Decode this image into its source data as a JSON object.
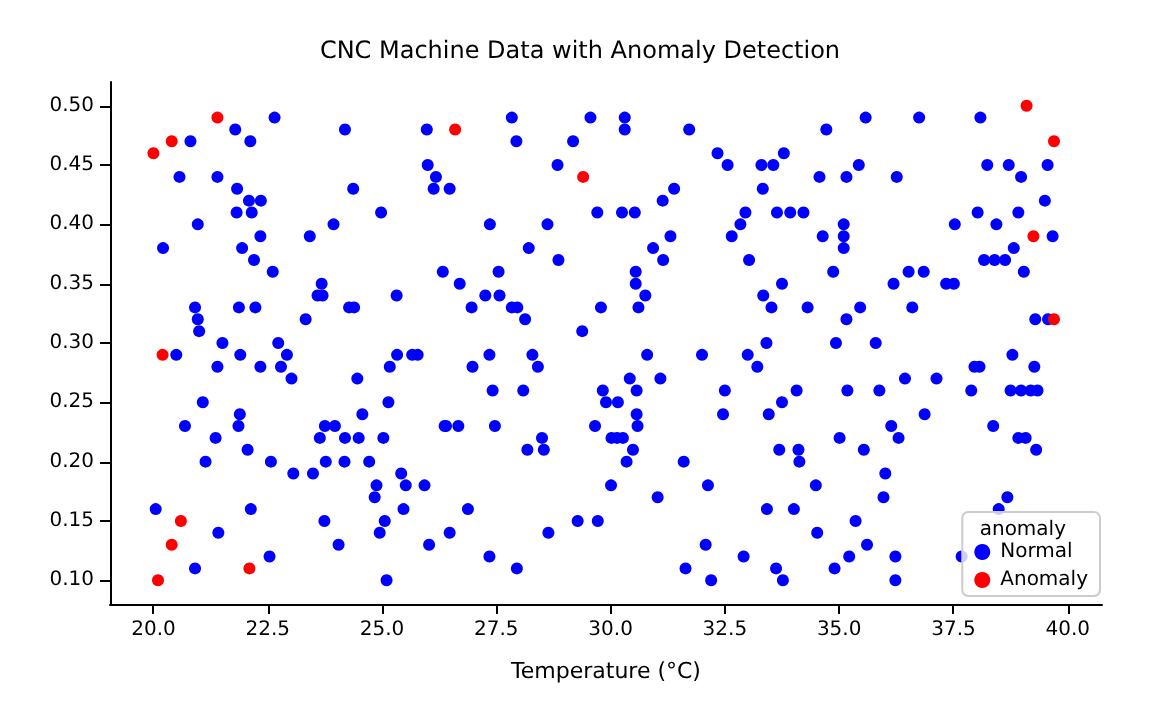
{
  "chart_data": {
    "type": "scatter",
    "title": "CNC Machine Data with Anomaly Detection",
    "xlabel": "Temperature (°C)",
    "legend_title": "anomaly",
    "legend": "bottom right",
    "grid": false,
    "marker": "circle",
    "xlim": [
      19.05,
      40.75
    ],
    "ylim": [
      0.08,
      0.52
    ],
    "xticks": [
      {
        "value": 20,
        "label": "20.0"
      },
      {
        "value": 22.5,
        "label": "22.5"
      },
      {
        "value": 25,
        "label": "25.0"
      },
      {
        "value": 27.5,
        "label": "27.5"
      },
      {
        "value": 30,
        "label": "30.0"
      },
      {
        "value": 32.5,
        "label": "32.5"
      },
      {
        "value": 35,
        "label": "35.0"
      },
      {
        "value": 37.5,
        "label": "37.5"
      },
      {
        "value": 40,
        "label": "40.0"
      }
    ],
    "yticks": [
      {
        "value": 0.1,
        "label": "0.10"
      },
      {
        "value": 0.15,
        "label": "0.15"
      },
      {
        "value": 0.2,
        "label": "0.20"
      },
      {
        "value": 0.25,
        "label": "0.25"
      },
      {
        "value": 0.3,
        "label": "0.30"
      },
      {
        "value": 0.35,
        "label": "0.35"
      },
      {
        "value": 0.4,
        "label": "0.40"
      },
      {
        "value": 0.45,
        "label": "0.45"
      },
      {
        "value": 0.5,
        "label": "0.50"
      }
    ],
    "series": [
      {
        "name": "Normal",
        "color": "#0000ff",
        "x": [
          20.81,
          21.79,
          22.12,
          22.65,
          24.19,
          20.57,
          21.4,
          21.83,
          24.37,
          22.09,
          22.35,
          21.82,
          22.15,
          24.98,
          20.97,
          23.94,
          22.34,
          23.42,
          20.21,
          21.94,
          22.2,
          22.61,
          23.68,
          23.59,
          23.7,
          25.32,
          20.91,
          21.87,
          22.23,
          24.28,
          24.39,
          20.97,
          23.33,
          21.0,
          21.51,
          22.73,
          20.5,
          21.9,
          22.92,
          25.33,
          25.66,
          25.78,
          21.4,
          22.34,
          22.79,
          25.17,
          23.02,
          24.46,
          25.14,
          21.08,
          24.57,
          21.89,
          20.69,
          21.86,
          23.75,
          23.97,
          21.36,
          23.64,
          24.19,
          24.49,
          25.03,
          22.06,
          21.14,
          22.57,
          23.77,
          24.18,
          24.72,
          23.06,
          23.49,
          25.42,
          24.88,
          25.52,
          25.93,
          24.84,
          20.05,
          22.13,
          25.47,
          23.74,
          25.06,
          21.42,
          24.95,
          24.05,
          26.03,
          22.54,
          20.91,
          25.1,
          25.98,
          26.0,
          26.18,
          26.13,
          26.48,
          26.33,
          26.37,
          27.84,
          29.56,
          30.31,
          30.31,
          31.72,
          27.94,
          29.18,
          32.34,
          33.79,
          28.84,
          32.56,
          33.3,
          33.56,
          31.39,
          33.33,
          31.14,
          29.71,
          30.25,
          30.53,
          32.95,
          33.64,
          33.93,
          27.36,
          28.62,
          32.84,
          31.31,
          32.65,
          28.21,
          30.93,
          28.86,
          31.15,
          33.03,
          27.55,
          30.55,
          26.7,
          30.55,
          33.75,
          27.26,
          27.57,
          30.76,
          33.34,
          26.96,
          27.84,
          27.96,
          29.79,
          30.61,
          33.52,
          28.13,
          29.38,
          33.41,
          27.35,
          28.29,
          30.8,
          32.0,
          33.0,
          26.98,
          28.41,
          33.21,
          30.42,
          31.09,
          27.42,
          28.09,
          29.83,
          30.57,
          32.5,
          34.07,
          29.9,
          30.16,
          33.75,
          30.57,
          32.46,
          33.46,
          26.4,
          26.67,
          27.47,
          29.66,
          30.59,
          28.5,
          30.02,
          30.14,
          30.27,
          28.18,
          28.54,
          30.49,
          33.69,
          34.11,
          30.35,
          31.6,
          30.01,
          32.13,
          31.03,
          26.88,
          33.42,
          34.01,
          29.28,
          29.72,
          26.48,
          28.64,
          32.08,
          27.35,
          32.91,
          27.95,
          31.64,
          33.62,
          32.2,
          33.77,
          35.58,
          36.75,
          38.09,
          34.72,
          35.43,
          38.24,
          38.71,
          39.56,
          34.57,
          35.16,
          36.26,
          38.98,
          39.5,
          34.22,
          38.03,
          38.92,
          35.1,
          37.53,
          38.44,
          34.64,
          35.1,
          39.67,
          35.1,
          38.82,
          38.17,
          38.4,
          38.63,
          34.87,
          36.52,
          36.85,
          39.04,
          36.19,
          37.34,
          37.51,
          34.31,
          35.46,
          36.6,
          35.16,
          39.29,
          39.57,
          34.93,
          35.8,
          38.79,
          37.96,
          38.07,
          39.27,
          36.44,
          37.13,
          35.18,
          35.88,
          37.89,
          38.75,
          38.98,
          39.19,
          39.34,
          36.87,
          36.14,
          38.37,
          35.01,
          36.3,
          38.92,
          39.08,
          35.54,
          39.31,
          34.13,
          36.01,
          34.49,
          35.97,
          38.68,
          38.49,
          35.36,
          34.52,
          35.61,
          35.22,
          36.23,
          37.68,
          34.9,
          36.23
        ],
        "values": [
          0.47,
          0.48,
          0.47,
          0.49,
          0.48,
          0.44,
          0.44,
          0.43,
          0.43,
          0.42,
          0.42,
          0.41,
          0.41,
          0.41,
          0.4,
          0.4,
          0.39,
          0.39,
          0.38,
          0.38,
          0.37,
          0.36,
          0.35,
          0.34,
          0.34,
          0.34,
          0.33,
          0.33,
          0.33,
          0.33,
          0.33,
          0.32,
          0.32,
          0.31,
          0.3,
          0.3,
          0.29,
          0.29,
          0.29,
          0.29,
          0.29,
          0.29,
          0.28,
          0.28,
          0.28,
          0.28,
          0.27,
          0.27,
          0.25,
          0.25,
          0.24,
          0.24,
          0.23,
          0.23,
          0.23,
          0.23,
          0.22,
          0.22,
          0.22,
          0.22,
          0.22,
          0.21,
          0.2,
          0.2,
          0.2,
          0.2,
          0.2,
          0.19,
          0.19,
          0.19,
          0.18,
          0.18,
          0.18,
          0.17,
          0.16,
          0.16,
          0.16,
          0.15,
          0.15,
          0.14,
          0.14,
          0.13,
          0.13,
          0.12,
          0.11,
          0.1,
          0.48,
          0.45,
          0.44,
          0.43,
          0.43,
          0.36,
          0.23,
          0.49,
          0.49,
          0.49,
          0.48,
          0.48,
          0.47,
          0.47,
          0.46,
          0.46,
          0.45,
          0.45,
          0.45,
          0.45,
          0.43,
          0.43,
          0.42,
          0.41,
          0.41,
          0.41,
          0.41,
          0.41,
          0.41,
          0.4,
          0.4,
          0.4,
          0.39,
          0.39,
          0.38,
          0.38,
          0.37,
          0.37,
          0.37,
          0.36,
          0.36,
          0.35,
          0.35,
          0.35,
          0.34,
          0.34,
          0.34,
          0.34,
          0.33,
          0.33,
          0.33,
          0.33,
          0.33,
          0.33,
          0.32,
          0.31,
          0.3,
          0.29,
          0.29,
          0.29,
          0.29,
          0.29,
          0.28,
          0.28,
          0.28,
          0.27,
          0.27,
          0.26,
          0.26,
          0.26,
          0.26,
          0.26,
          0.26,
          0.25,
          0.25,
          0.25,
          0.24,
          0.24,
          0.24,
          0.23,
          0.23,
          0.23,
          0.23,
          0.23,
          0.22,
          0.22,
          0.22,
          0.22,
          0.21,
          0.21,
          0.21,
          0.21,
          0.21,
          0.2,
          0.2,
          0.18,
          0.18,
          0.17,
          0.16,
          0.16,
          0.16,
          0.15,
          0.15,
          0.14,
          0.14,
          0.13,
          0.12,
          0.12,
          0.11,
          0.11,
          0.11,
          0.1,
          0.1,
          0.49,
          0.49,
          0.49,
          0.48,
          0.45,
          0.45,
          0.45,
          0.45,
          0.44,
          0.44,
          0.44,
          0.44,
          0.42,
          0.41,
          0.41,
          0.41,
          0.4,
          0.4,
          0.4,
          0.39,
          0.39,
          0.39,
          0.38,
          0.38,
          0.37,
          0.37,
          0.37,
          0.36,
          0.36,
          0.36,
          0.36,
          0.35,
          0.35,
          0.35,
          0.33,
          0.33,
          0.33,
          0.32,
          0.32,
          0.32,
          0.3,
          0.3,
          0.29,
          0.28,
          0.28,
          0.28,
          0.27,
          0.27,
          0.26,
          0.26,
          0.26,
          0.26,
          0.26,
          0.26,
          0.26,
          0.24,
          0.23,
          0.23,
          0.22,
          0.22,
          0.22,
          0.22,
          0.21,
          0.21,
          0.2,
          0.19,
          0.18,
          0.17,
          0.17,
          0.16,
          0.15,
          0.14,
          0.13,
          0.12,
          0.12,
          0.12,
          0.11,
          0.1
        ]
      },
      {
        "name": "Anomaly",
        "color": "#ff0000",
        "x": [
          20.0,
          20.4,
          21.4,
          20.2,
          20.6,
          20.4,
          20.1,
          22.1,
          26.6,
          29.4,
          39.1,
          39.7,
          39.25,
          39.7
        ],
        "values": [
          0.46,
          0.47,
          0.49,
          0.29,
          0.15,
          0.13,
          0.1,
          0.11,
          0.48,
          0.44,
          0.5,
          0.47,
          0.39,
          0.32
        ]
      }
    ]
  }
}
